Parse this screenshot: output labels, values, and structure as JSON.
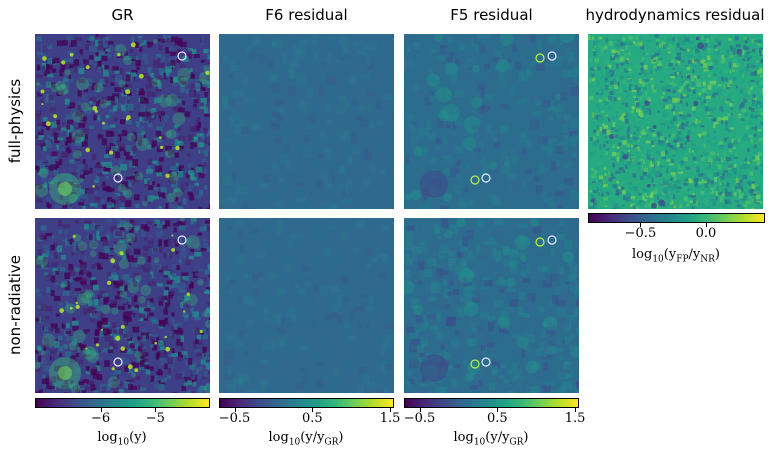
{
  "chart_data": {
    "type": "heatmap",
    "columns": [
      "GR",
      "F6 residual",
      "F5 residual",
      "hydrodynamics residual"
    ],
    "rows": [
      "full-physics",
      "non-radiative"
    ],
    "colormap": "viridis",
    "colorbars": [
      {
        "label_base": "log",
        "label_sub": "10",
        "label_arg": "(y)",
        "range": [
          -7.2,
          -4.0
        ],
        "ticks": [
          -6,
          -5
        ],
        "tick_labels": [
          "−6",
          "−5"
        ]
      },
      {
        "label_base": "log",
        "label_sub": "10",
        "label_arg": "(y/y",
        "label_arg_sub": "GR",
        "label_close": ")",
        "range": [
          -0.7,
          1.55
        ],
        "ticks": [
          -0.5,
          0.5,
          1.5
        ],
        "tick_labels": [
          "−0.5",
          "0.5",
          "1.5"
        ]
      },
      {
        "label_base": "log",
        "label_sub": "10",
        "label_arg": "(y/y",
        "label_arg_sub": "GR",
        "label_close": ")",
        "range": [
          -0.7,
          1.55
        ],
        "ticks": [
          -0.5,
          0.5,
          1.5
        ],
        "tick_labels": [
          "−0.5",
          "0.5",
          "1.5"
        ]
      },
      {
        "label_base": "log",
        "label_sub": "10",
        "label_arg": "(y",
        "label_arg_sub": "FP",
        "label_mid": "/y",
        "label_mid_sub": "NR",
        "label_close": ")",
        "range": [
          -0.9,
          0.45
        ],
        "ticks": [
          -0.5,
          0.0
        ],
        "tick_labels": [
          "−0.5",
          "0.0"
        ]
      }
    ],
    "colors": {
      "gr_bg": "#3e3f86",
      "f6_bg": "#2f6a8e",
      "f5_bg": "#2c6d8e",
      "hydro_bg": "#27a982",
      "circle_white": "#e8e8ff",
      "circle_green": "#b8f542"
    }
  }
}
